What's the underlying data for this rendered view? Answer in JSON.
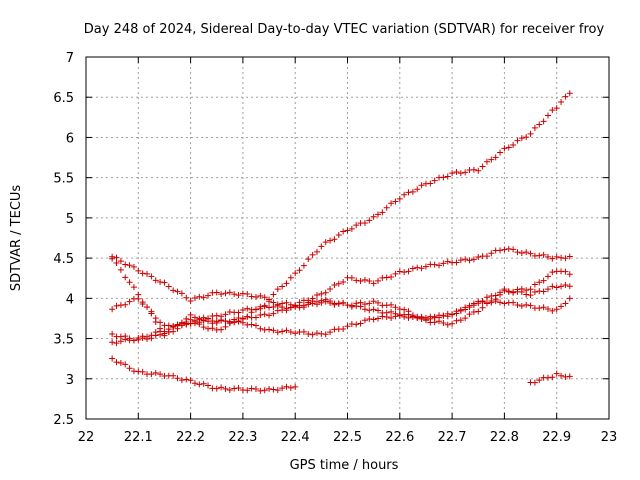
{
  "chart_data": {
    "type": "scatter",
    "title": "Day 248 of 2024, Sidereal Day-to-day VTEC variation (SDTVAR) for receiver froy",
    "xlabel": "GPS time / hours",
    "ylabel": "SDTVAR / TECUs",
    "xlim": [
      22,
      23
    ],
    "ylim": [
      2.5,
      7
    ],
    "xticks": [
      22,
      22.1,
      22.2,
      22.3,
      22.4,
      22.5,
      22.6,
      22.7,
      22.8,
      22.9,
      23
    ],
    "xtick_labels": [
      "22",
      "22.1",
      "22.2",
      "22.3",
      "22.4",
      "22.5",
      "22.6",
      "22.7",
      "22.8",
      "22.9",
      "23"
    ],
    "yticks": [
      2.5,
      3,
      3.5,
      4,
      4.5,
      5,
      5.5,
      6,
      6.5,
      7
    ],
    "ytick_labels": [
      "2.5",
      "3",
      "3.5",
      "4",
      "4.5",
      "5",
      "5.5",
      "6",
      "6.5",
      "7"
    ],
    "grid": true,
    "marker": "+",
    "color": "#cc0000",
    "series": [
      {
        "x": [
          22.05,
          22.1,
          22.15,
          22.2,
          22.25,
          22.3,
          22.35,
          22.4,
          22.45,
          22.5,
          22.55,
          22.6,
          22.65,
          22.7,
          22.75,
          22.8,
          22.85,
          22.9,
          22.925
        ],
        "y": [
          3.25,
          3.08,
          3.05,
          2.97,
          2.88,
          2.87,
          2.86,
          2.9,
          null,
          null,
          null,
          null,
          null,
          null,
          null,
          null,
          2.95,
          3.05,
          3.03
        ]
      },
      {
        "x": [
          22.05,
          22.1,
          22.15,
          22.2,
          22.25,
          22.3,
          22.35,
          22.4,
          22.45,
          22.5,
          22.55,
          22.6,
          22.65,
          22.7,
          22.75,
          22.8,
          22.85,
          22.9,
          22.925
        ],
        "y": [
          4.52,
          4.35,
          4.18,
          3.98,
          4.07,
          4.05,
          4.0,
          4.3,
          4.65,
          4.85,
          5.0,
          5.25,
          5.42,
          5.55,
          5.6,
          5.85,
          6.05,
          6.38,
          6.55
        ]
      },
      {
        "x": [
          22.05,
          22.1,
          22.15,
          22.2,
          22.25,
          22.3,
          22.35,
          22.4,
          22.45,
          22.5,
          22.55,
          22.6,
          22.65,
          22.7,
          22.75,
          22.8,
          22.85,
          22.9,
          22.925
        ],
        "y": [
          3.45,
          3.5,
          3.6,
          3.72,
          3.7,
          3.75,
          3.95,
          3.92,
          4.05,
          4.25,
          4.2,
          4.32,
          4.4,
          4.45,
          4.5,
          4.62,
          4.55,
          4.5,
          4.52
        ]
      },
      {
        "x": [
          22.05,
          22.1,
          22.15,
          22.2,
          22.25,
          22.3,
          22.35,
          22.4,
          22.45,
          22.5,
          22.55,
          22.6,
          22.65,
          22.7,
          22.75,
          22.8,
          22.85,
          22.9,
          22.925
        ],
        "y": [
          3.87,
          4.0,
          3.65,
          3.7,
          3.78,
          3.85,
          3.9,
          3.88,
          3.95,
          3.92,
          3.95,
          3.88,
          3.72,
          3.68,
          3.85,
          4.08,
          4.12,
          4.35,
          4.3
        ]
      },
      {
        "x": [
          22.05,
          22.1,
          22.15,
          22.2,
          22.25,
          22.3,
          22.35,
          22.4,
          22.45,
          22.5,
          22.55,
          22.6,
          22.65,
          22.7,
          22.75,
          22.8,
          22.85,
          22.9,
          22.925
        ],
        "y": [
          3.55,
          3.48,
          3.55,
          3.78,
          3.72,
          3.7,
          3.6,
          3.58,
          3.55,
          3.65,
          3.75,
          3.78,
          3.75,
          3.8,
          3.95,
          3.95,
          3.9,
          3.85,
          4.0
        ]
      },
      {
        "x": [
          22.05,
          22.1,
          22.15,
          22.2,
          22.25,
          22.3,
          22.35,
          22.4,
          22.45,
          22.5,
          22.55,
          22.6,
          22.65,
          22.7,
          22.75,
          22.8,
          22.85,
          22.9,
          22.925
        ],
        "y": [
          4.5,
          4.05,
          3.55,
          3.7,
          3.6,
          3.75,
          3.8,
          3.9,
          3.98,
          3.92,
          3.85,
          3.8,
          3.75,
          3.8,
          3.95,
          4.1,
          4.05,
          4.15,
          4.15
        ]
      }
    ]
  }
}
